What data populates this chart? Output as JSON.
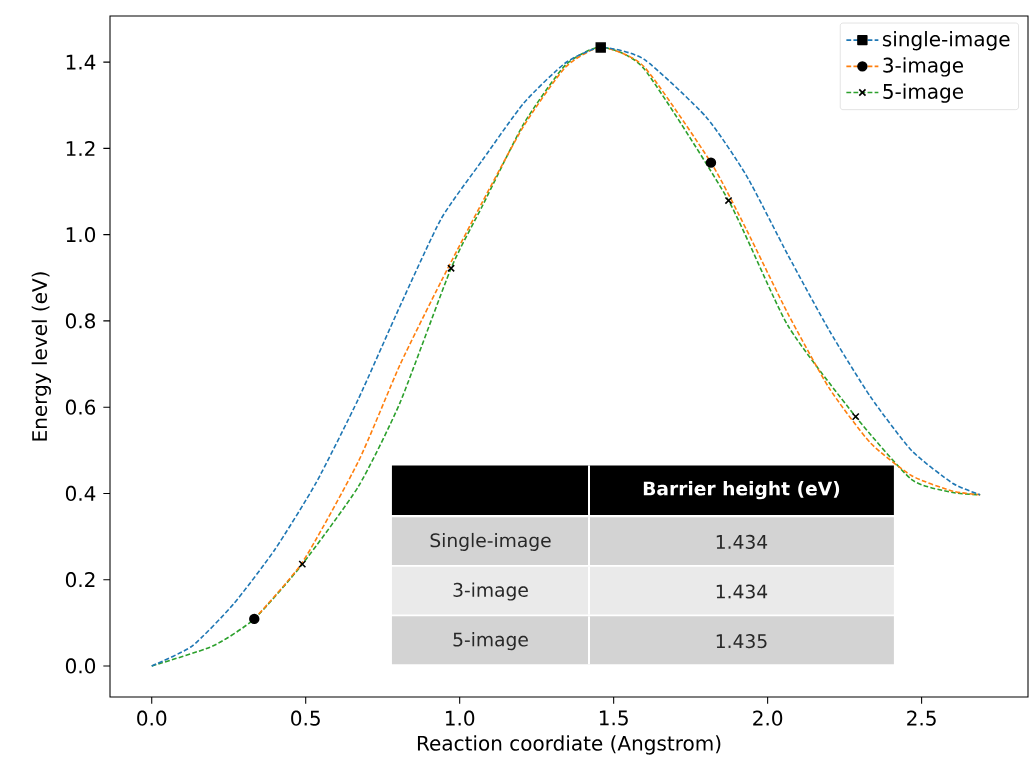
{
  "chart_data": {
    "type": "line",
    "xlabel": "Reaction coordiate (Angstrom)",
    "ylabel": "Energy level (eV)",
    "xlim": [
      -0.1355,
      2.8455
    ],
    "ylim": [
      -0.072,
      1.507
    ],
    "xticks": [
      {
        "value": 0,
        "label": "0.0"
      },
      {
        "value": 0.5,
        "label": "0.5"
      },
      {
        "value": 1,
        "label": "1.0"
      },
      {
        "value": 1.5,
        "label": "1.5"
      },
      {
        "value": 2,
        "label": "2.0"
      },
      {
        "value": 2.5,
        "label": "2.5"
      }
    ],
    "yticks": [
      {
        "value": 0,
        "label": "0.0"
      },
      {
        "value": 0.2,
        "label": "0.2"
      },
      {
        "value": 0.4,
        "label": "0.4"
      },
      {
        "value": 0.6,
        "label": "0.6"
      },
      {
        "value": 0.8,
        "label": "0.8"
      },
      {
        "value": 1,
        "label": "1.0"
      },
      {
        "value": 1.2,
        "label": "1.2"
      },
      {
        "value": 1.4,
        "label": "1.4"
      }
    ],
    "legend": "top right",
    "series": [
      {
        "name": "single-image",
        "color": "#1f77b4",
        "line_style": "dashed",
        "marker": "none",
        "x": [
          0,
          0.131,
          0.265,
          0.4,
          0.534,
          0.671,
          0.806,
          0.94,
          1.074,
          1.208,
          1.343,
          1.458,
          1.598,
          1.8,
          1.931,
          2.065,
          2.2,
          2.334,
          2.468,
          2.602,
          2.69
        ],
        "values": [
          0,
          0.046,
          0.143,
          0.27,
          0.425,
          0.619,
          0.834,
          1.037,
          1.173,
          1.305,
          1.398,
          1.434,
          1.407,
          1.273,
          1.137,
          0.954,
          0.778,
          0.624,
          0.499,
          0.423,
          0.397
        ]
      },
      {
        "type": "scatter",
        "color": "#000000",
        "marker": "square",
        "x": [
          1.458
        ],
        "values": [
          1.434
        ]
      },
      {
        "name": "3-image",
        "color": "#ff7f0e",
        "line_style": "dashed",
        "marker": "none",
        "x": [
          0.333,
          0.489,
          0.671,
          0.806,
          0.94,
          1.074,
          1.208,
          1.343,
          1.458,
          1.598,
          1.816,
          1.931,
          2.065,
          2.2,
          2.334,
          2.468,
          2.602,
          2.69
        ],
        "values": [
          0.109,
          0.24,
          0.474,
          0.698,
          0.892,
          1.076,
          1.252,
          1.388,
          1.434,
          1.39,
          1.167,
          1.012,
          0.818,
          0.644,
          0.517,
          0.441,
          0.405,
          0.397
        ]
      },
      {
        "type": "scatter",
        "color": "#000000",
        "marker": "circle",
        "x": [
          0.333,
          1.816
        ],
        "values": [
          0.109,
          1.167
        ]
      },
      {
        "name": "5-image",
        "color": "#2ca02c",
        "line_style": "dashed",
        "marker": "none",
        "x": [
          0,
          0.198,
          0.333,
          0.489,
          0.671,
          0.806,
          0.972,
          1.074,
          1.208,
          1.343,
          1.458,
          1.598,
          1.873,
          2.065,
          2.286,
          2.468,
          2.602,
          2.69
        ],
        "values": [
          0,
          0.046,
          0.109,
          0.236,
          0.416,
          0.61,
          0.922,
          1.067,
          1.257,
          1.393,
          1.435,
          1.385,
          1.079,
          0.79,
          0.578,
          0.432,
          0.402,
          0.397
        ]
      },
      {
        "type": "scatter",
        "color": "#000000",
        "marker": "cross",
        "x": [
          0.489,
          0.972,
          1.873,
          2.286
        ],
        "values": [
          0.236,
          0.922,
          1.079,
          0.578
        ]
      }
    ],
    "annotations": [
      "Barrier height (eV)",
      "Single-image",
      "1.434",
      "3-image",
      "1.434",
      "5-image",
      "1.435"
    ]
  }
}
